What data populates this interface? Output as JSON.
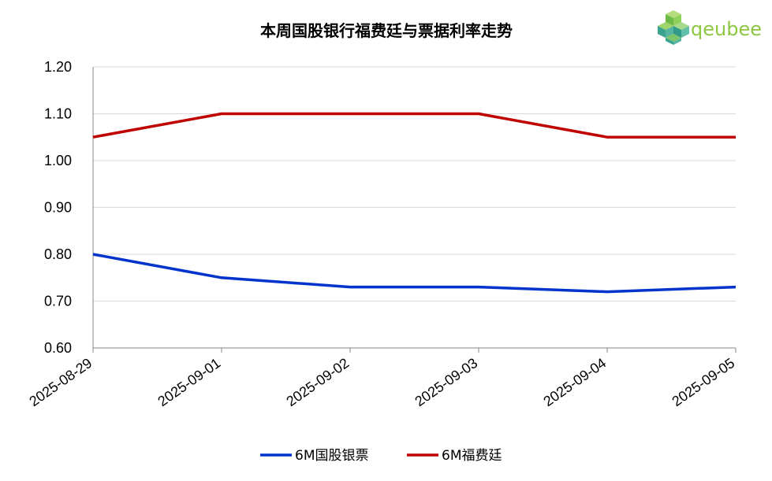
{
  "chart_data": {
    "type": "line",
    "title": "本周国股银行福费廷与票据利率走势",
    "x": [
      "2025-08-29",
      "2025-09-01",
      "2025-09-02",
      "2025-09-03",
      "2025-09-04",
      "2025-09-05"
    ],
    "series": [
      {
        "name": "6M国股银票",
        "color": "#0033cc",
        "values": [
          0.8,
          0.75,
          0.73,
          0.73,
          0.72,
          0.73
        ]
      },
      {
        "name": "6M福费廷",
        "color": "#c00000",
        "values": [
          1.05,
          1.1,
          1.1,
          1.1,
          1.05,
          1.05
        ]
      }
    ],
    "ylim": [
      0.6,
      1.2
    ],
    "yticks": [
      "0.60",
      "0.70",
      "0.80",
      "0.90",
      "1.00",
      "1.10",
      "1.20"
    ],
    "grid": true,
    "legend_position": "bottom"
  },
  "brand": {
    "name": "qeubee",
    "color": "#8dc63f",
    "icon": "cube-logo-icon"
  }
}
